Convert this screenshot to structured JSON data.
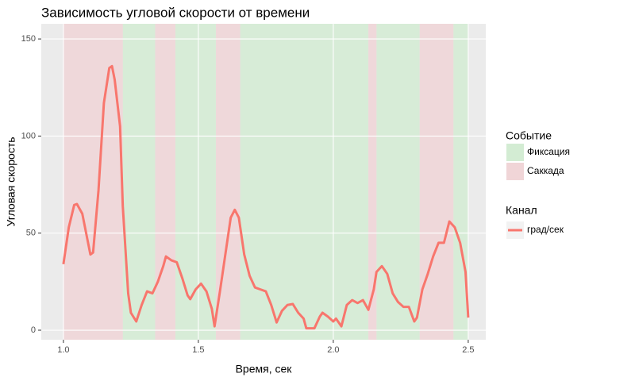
{
  "chart_data": {
    "type": "line",
    "title": "Зависимость угловой скорости от времени",
    "x_label": "Время, сек",
    "y_label": "Угловая скорость",
    "xlim": [
      0.918,
      2.565
    ],
    "ylim": [
      -4.9,
      157.8
    ],
    "xticks": [
      {
        "value": 1,
        "label": "1.0"
      },
      1.5,
      {
        "value": 2,
        "label": "2.0"
      },
      2.5
    ],
    "yticks": [
      0,
      50,
      100,
      150
    ],
    "grid": true,
    "event_legend_title": "Событие",
    "legend_title": "Канал",
    "events": [
      {
        "name": "Фиксация",
        "color": "#d3ecd3",
        "spans": [
          [
            1.22,
            1.34
          ],
          [
            1.415,
            1.565
          ],
          [
            1.655,
            2.13
          ],
          [
            2.16,
            2.32
          ],
          [
            2.445,
            2.5
          ]
        ]
      },
      {
        "name": "Саккада",
        "color": "#f0d5d7",
        "spans": [
          [
            1.0,
            1.22
          ],
          [
            1.34,
            1.415
          ],
          [
            1.565,
            1.655
          ],
          [
            2.13,
            2.16
          ],
          [
            2.32,
            2.445
          ]
        ]
      }
    ],
    "x": [
      1.0,
      1.02,
      1.04,
      1.05,
      1.07,
      1.09,
      1.1,
      1.11,
      1.13,
      1.15,
      1.17,
      1.18,
      1.19,
      1.21,
      1.22,
      1.24,
      1.25,
      1.27,
      1.29,
      1.31,
      1.33,
      1.35,
      1.37,
      1.38,
      1.4,
      1.42,
      1.44,
      1.46,
      1.47,
      1.49,
      1.51,
      1.53,
      1.55,
      1.56,
      1.58,
      1.6,
      1.62,
      1.635,
      1.65,
      1.67,
      1.69,
      1.71,
      1.73,
      1.75,
      1.77,
      1.79,
      1.81,
      1.83,
      1.85,
      1.87,
      1.89,
      1.9,
      1.93,
      1.95,
      1.96,
      1.98,
      2.0,
      2.01,
      2.03,
      2.05,
      2.07,
      2.09,
      2.11,
      2.13,
      2.15,
      2.16,
      2.18,
      2.2,
      2.22,
      2.24,
      2.26,
      2.28,
      2.3,
      2.31,
      2.33,
      2.35,
      2.37,
      2.39,
      2.41,
      2.43,
      2.45,
      2.47,
      2.49,
      2.5
    ],
    "series": [
      {
        "name": "град/сек",
        "color": "#f8766d",
        "values": [
          34,
          53,
          64.5,
          65,
          60,
          46,
          39,
          40,
          72,
          117,
          135,
          136,
          129,
          105,
          64,
          19,
          9,
          4.5,
          13,
          20,
          19,
          25,
          33,
          38,
          36,
          35,
          27,
          18,
          16,
          21,
          24,
          20,
          11,
          2,
          20,
          39,
          58,
          62,
          58,
          39,
          28,
          22,
          21,
          20,
          13,
          4,
          10,
          13,
          13.5,
          9,
          6,
          1,
          1,
          7,
          9,
          7,
          4.5,
          6,
          2,
          13,
          15.5,
          14,
          15.5,
          10.5,
          21,
          30,
          33,
          29,
          19,
          14.5,
          12,
          12,
          4.5,
          6.5,
          21,
          29,
          38,
          45,
          45,
          56,
          53,
          45,
          30,
          6.5
        ]
      }
    ]
  }
}
